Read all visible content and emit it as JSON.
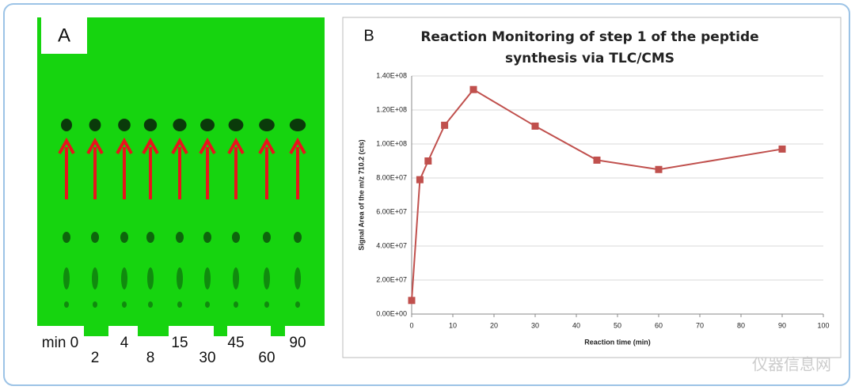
{
  "panel_a": {
    "label": "A",
    "lane_labels": [
      "min 0",
      "2",
      "4",
      "8",
      "15",
      "30",
      "45",
      "60",
      "90"
    ]
  },
  "panel_b_label": "B",
  "watermark": "仪器信息网",
  "chart_data": {
    "type": "line",
    "title": "Reaction Monitoring of step 1 of the peptide synthesis via TLC/CMS",
    "x_label": "Reaction time (min)",
    "y_label": "Signal Area of the m/z 710.2 (cts)",
    "x": [
      0,
      2,
      4,
      8,
      15,
      30,
      45,
      60,
      90
    ],
    "series": [
      {
        "name": "Signal Area",
        "color": "#c0504d",
        "values": [
          8000000,
          79000000,
          90000000,
          111000000,
          132000000,
          110500000,
          90500000,
          85000000,
          97000000
        ]
      }
    ],
    "xlim": [
      0,
      100
    ],
    "xticks": [
      0,
      10,
      20,
      30,
      40,
      50,
      60,
      70,
      80,
      90,
      100
    ],
    "ylim": [
      0,
      140000000
    ],
    "yticks": [
      {
        "value": 0,
        "label": "0.00E+00"
      },
      {
        "value": 20000000,
        "label": "2.00E+07"
      },
      {
        "value": 40000000,
        "label": "4.00E+07"
      },
      {
        "value": 60000000,
        "label": "6.00E+07"
      },
      {
        "value": 80000000,
        "label": "8.00E+07"
      },
      {
        "value": 100000000,
        "label": "1.00E+08"
      },
      {
        "value": 120000000,
        "label": "1.20E+08"
      },
      {
        "value": 140000000,
        "label": "1.40E+08"
      }
    ],
    "grid": true
  }
}
